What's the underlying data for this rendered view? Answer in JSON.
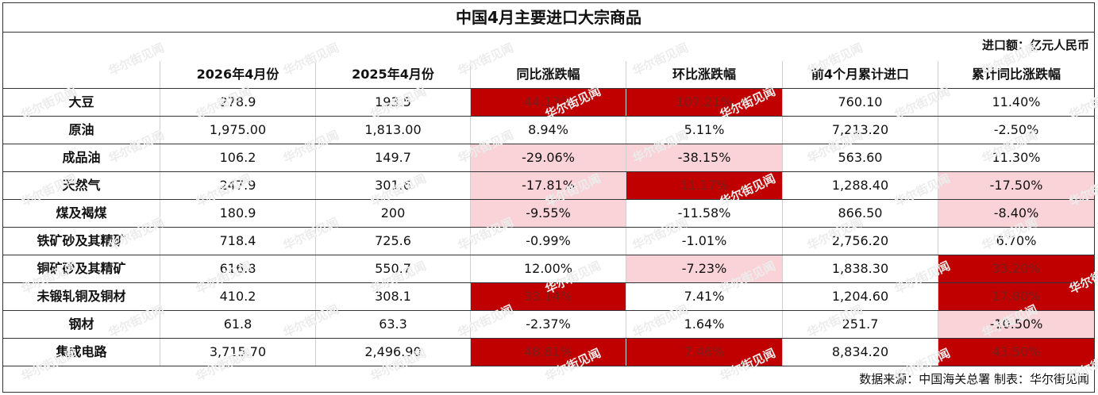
{
  "chart_data": {
    "type": "table",
    "title": "中国4月主要进口大宗商品",
    "unit_note": "进口额：亿元人民币",
    "columns": [
      "",
      "2026年4月份",
      "2025年4月份",
      "同比涨跌幅",
      "环比涨跌幅",
      "前4个月累计进口",
      "累计同比涨跌幅"
    ],
    "rows": [
      {
        "name": "大豆",
        "values": [
          "278.9",
          "193.5",
          "44.13%",
          "107.21%",
          "760.10",
          "11.40%"
        ],
        "shade": [
          "",
          "",
          "dark",
          "dark",
          "",
          ""
        ]
      },
      {
        "name": "原油",
        "values": [
          "1,975.00",
          "1,813.00",
          "8.94%",
          "5.11%",
          "7,213.20",
          "-2.50%"
        ],
        "shade": [
          "",
          "",
          "",
          "",
          "",
          ""
        ]
      },
      {
        "name": "成品油",
        "values": [
          "106.2",
          "149.7",
          "-29.06%",
          "-38.15%",
          "563.60",
          "11.30%"
        ],
        "shade": [
          "",
          "",
          "light",
          "light",
          "",
          ""
        ]
      },
      {
        "name": "天然气",
        "values": [
          "247.9",
          "301.6",
          "-17.81%",
          "11.17%",
          "1,288.40",
          "-17.50%"
        ],
        "shade": [
          "",
          "",
          "light",
          "dark",
          "",
          "light"
        ]
      },
      {
        "name": "煤及褐煤",
        "values": [
          "180.9",
          "200",
          "-9.55%",
          "-11.58%",
          "866.50",
          "-8.40%"
        ],
        "shade": [
          "",
          "",
          "light",
          "",
          "",
          "light"
        ]
      },
      {
        "name": "铁矿砂及其精矿",
        "values": [
          "718.4",
          "725.6",
          "-0.99%",
          "-1.01%",
          "2,756.20",
          "6.70%"
        ],
        "shade": [
          "",
          "",
          "",
          "",
          "",
          ""
        ]
      },
      {
        "name": "铜矿砂及其精矿",
        "values": [
          "616.8",
          "550.7",
          "12.00%",
          "-7.23%",
          "1,838.30",
          "33.20%"
        ],
        "shade": [
          "",
          "",
          "",
          "light",
          "",
          "dark"
        ]
      },
      {
        "name": "未锻轧铜及铜材",
        "values": [
          "410.2",
          "308.1",
          "33.14%",
          "7.41%",
          "1,204.60",
          "17.80%"
        ],
        "shade": [
          "",
          "",
          "dark",
          "",
          "",
          "dark"
        ]
      },
      {
        "name": "钢材",
        "values": [
          "61.8",
          "63.3",
          "-2.37%",
          "1.64%",
          "251.7",
          "-10.50%"
        ],
        "shade": [
          "",
          "",
          "",
          "",
          "",
          "light"
        ]
      },
      {
        "name": "集成电路",
        "values": [
          "3,715.70",
          "2,496.90",
          "48.81%",
          "7.46%",
          "8,834.20",
          "43.50%"
        ],
        "shade": [
          "",
          "",
          "dark",
          "dark",
          "",
          "dark"
        ]
      }
    ],
    "colors": {
      "dark": "#c00000",
      "light": "#f9d3d8"
    }
  },
  "footer": "数据来源：中国海关总署 制表：华尔街见闻",
  "watermark": "华尔街见闻"
}
